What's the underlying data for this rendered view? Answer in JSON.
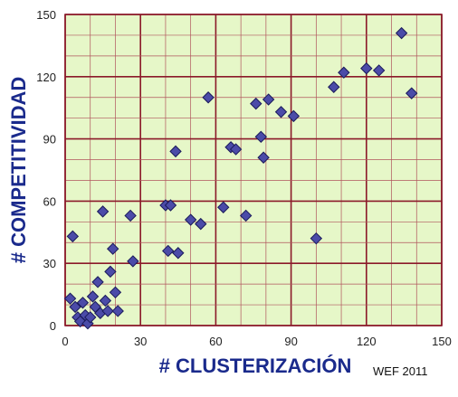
{
  "chart_data": {
    "type": "scatter",
    "xlabel": "# CLUSTERIZACIÓN",
    "ylabel": "# COMPETITIVIDAD",
    "xlim": [
      0,
      150
    ],
    "ylim": [
      0,
      150
    ],
    "x_ticks": [
      0,
      30,
      60,
      90,
      120,
      150
    ],
    "y_ticks": [
      0,
      30,
      60,
      90,
      120,
      150
    ],
    "x_minor_step": 10,
    "y_minor_step": 10,
    "grid": true,
    "legend": "none",
    "plot_background": "#e6f7c8",
    "grid_color": "#b0545c",
    "major_grid_color": "#8b1a2a",
    "marker_fill": "#4b4ba8",
    "marker_edge": "#1a1a5a",
    "title_color": "#1a2a8c",
    "points": [
      {
        "x": 2,
        "y": 13
      },
      {
        "x": 3,
        "y": 43
      },
      {
        "x": 4,
        "y": 9
      },
      {
        "x": 5,
        "y": 4
      },
      {
        "x": 6,
        "y": 2
      },
      {
        "x": 7,
        "y": 11
      },
      {
        "x": 8,
        "y": 5
      },
      {
        "x": 9,
        "y": 1
      },
      {
        "x": 10,
        "y": 4
      },
      {
        "x": 11,
        "y": 14
      },
      {
        "x": 12,
        "y": 9
      },
      {
        "x": 13,
        "y": 21
      },
      {
        "x": 14,
        "y": 6
      },
      {
        "x": 15,
        "y": 55
      },
      {
        "x": 16,
        "y": 12
      },
      {
        "x": 17,
        "y": 7
      },
      {
        "x": 18,
        "y": 26
      },
      {
        "x": 19,
        "y": 37
      },
      {
        "x": 20,
        "y": 16
      },
      {
        "x": 21,
        "y": 7
      },
      {
        "x": 26,
        "y": 53
      },
      {
        "x": 27,
        "y": 31
      },
      {
        "x": 40,
        "y": 58
      },
      {
        "x": 41,
        "y": 36
      },
      {
        "x": 42,
        "y": 58
      },
      {
        "x": 44,
        "y": 84
      },
      {
        "x": 45,
        "y": 35
      },
      {
        "x": 50,
        "y": 51
      },
      {
        "x": 54,
        "y": 49
      },
      {
        "x": 57,
        "y": 110
      },
      {
        "x": 63,
        "y": 57
      },
      {
        "x": 66,
        "y": 86
      },
      {
        "x": 68,
        "y": 85
      },
      {
        "x": 72,
        "y": 53
      },
      {
        "x": 76,
        "y": 107
      },
      {
        "x": 78,
        "y": 91
      },
      {
        "x": 79,
        "y": 81
      },
      {
        "x": 81,
        "y": 109
      },
      {
        "x": 86,
        "y": 103
      },
      {
        "x": 91,
        "y": 101
      },
      {
        "x": 100,
        "y": 42
      },
      {
        "x": 107,
        "y": 115
      },
      {
        "x": 111,
        "y": 122
      },
      {
        "x": 120,
        "y": 124
      },
      {
        "x": 125,
        "y": 123
      },
      {
        "x": 134,
        "y": 141
      },
      {
        "x": 138,
        "y": 112
      }
    ]
  },
  "source_note": "WEF 2011"
}
